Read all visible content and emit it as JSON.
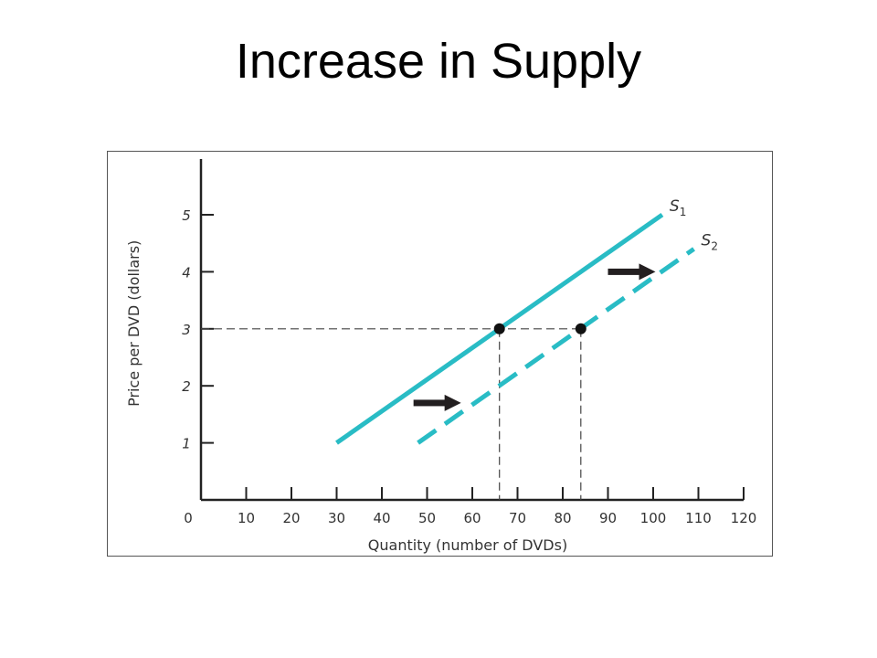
{
  "slide": {
    "title": "Increase in Supply"
  },
  "chart_data": {
    "type": "line",
    "xlabel": "Quantity (number of DVDs)",
    "ylabel": "Price per DVD (dollars)",
    "xlim": [
      0,
      120
    ],
    "ylim": [
      0,
      6
    ],
    "x_ticks": [
      0,
      10,
      20,
      30,
      40,
      50,
      60,
      70,
      80,
      90,
      100,
      110,
      120
    ],
    "y_ticks": [
      1,
      2,
      3,
      4,
      5
    ],
    "grid": false,
    "series": [
      {
        "name": "S1",
        "label_main": "S",
        "label_sub": "1",
        "style": "solid",
        "color": "#29bcc5",
        "points": [
          [
            30,
            1
          ],
          [
            102,
            5
          ]
        ]
      },
      {
        "name": "S2",
        "label_main": "S",
        "label_sub": "2",
        "style": "dashed",
        "color": "#29bcc5",
        "points": [
          [
            48,
            1
          ],
          [
            109,
            4.4
          ]
        ]
      }
    ],
    "equilibrium_points": [
      {
        "x": 66,
        "y": 3
      },
      {
        "x": 84,
        "y": 3
      }
    ],
    "annotations": [
      {
        "type": "shift-arrow",
        "at": [
          47,
          1.7
        ],
        "direction": "right"
      },
      {
        "type": "shift-arrow",
        "at": [
          90,
          4
        ],
        "direction": "right"
      }
    ]
  }
}
